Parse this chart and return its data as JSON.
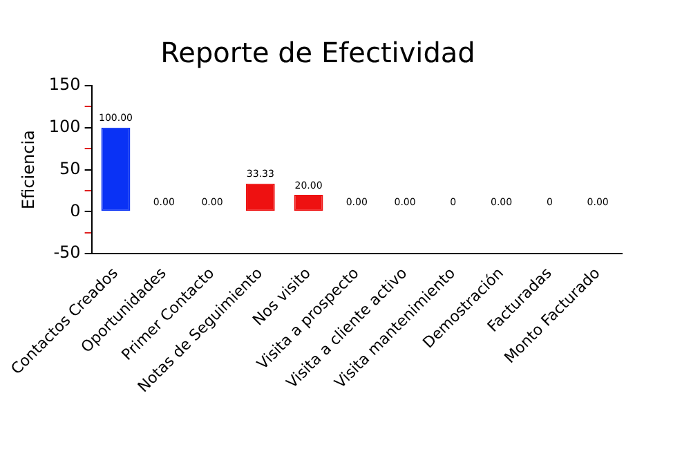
{
  "chart_data": {
    "type": "bar",
    "title": "Reporte de Efectividad",
    "ylabel": "Eficiencia",
    "categories": [
      "Contactos Creados",
      "Oportunidades",
      "Primer Contacto",
      "Notas de Seguimiento",
      "Nos visito",
      "Visita a prospecto",
      "Visita a cliente activo",
      "Visita mantenimiento",
      "Demostración",
      "Facturadas",
      "Monto Facturado"
    ],
    "values": [
      100,
      0,
      0,
      33.33,
      20,
      0,
      0,
      0,
      0,
      0,
      0
    ],
    "colors": [
      "#0a32f5",
      "#f08080",
      "#f08080",
      "#ee1111",
      "#ee1111",
      "#f08080",
      "#f08080",
      "#f08080",
      "#f08080",
      "#f08080",
      "#f08080"
    ],
    "value_labels": [
      "100.00",
      "0.00",
      "0.00",
      "33.33",
      "20.00",
      "0.00",
      "0.00",
      "0",
      "0.00",
      "0",
      "0.00"
    ],
    "ylim": [
      -50,
      150
    ],
    "yticks": [
      -50,
      {
        "value": -25,
        "label": null
      },
      0,
      {
        "value": 25,
        "label": null
      },
      50,
      {
        "value": 75,
        "label": null
      },
      100,
      {
        "value": 125,
        "label": null
      },
      150
    ],
    "grid": false,
    "legend": false
  }
}
